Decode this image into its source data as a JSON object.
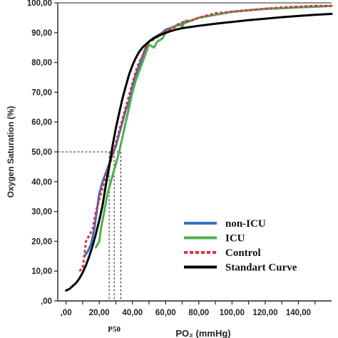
{
  "chart_data": {
    "type": "line",
    "title": "",
    "xlabel": "PO₂ (mmHg)",
    "ylabel": "Oxygen Saturation (%)",
    "xlim": [
      -5,
      160
    ],
    "ylim": [
      0,
      100
    ],
    "x_ticks": [
      0,
      10,
      20,
      30,
      40,
      50,
      60,
      70,
      80,
      90,
      100,
      110,
      120,
      130,
      140,
      150
    ],
    "x_tick_labels": [
      ",00",
      "",
      "20,00",
      "",
      "40,00",
      "",
      "60,00",
      "",
      "80,00",
      "",
      "100,00",
      "",
      "120,00",
      "",
      "140,00",
      ""
    ],
    "y_ticks": [
      0,
      10,
      20,
      30,
      40,
      50,
      60,
      70,
      80,
      90,
      100
    ],
    "y_tick_labels": [
      ",00",
      "10,00",
      "20,00",
      "30,00",
      "40,00",
      "50,00",
      "60,00",
      "70,00",
      "80,00",
      "90,00",
      "100,00"
    ],
    "grid": false,
    "legend_position": "bottom-right",
    "reference_lines": {
      "label": "P50",
      "y": 50,
      "x": [
        26,
        29,
        33
      ]
    },
    "series": [
      {
        "name": "non-ICU",
        "color": "#3a6fc4",
        "dash": "solid",
        "points": [
          [
            11,
            15
          ],
          [
            13,
            16.5
          ],
          [
            15,
            19
          ],
          [
            16,
            21.5
          ],
          [
            17,
            24
          ],
          [
            18,
            28
          ],
          [
            19,
            32
          ],
          [
            20,
            36
          ],
          [
            22,
            40
          ],
          [
            24,
            43
          ],
          [
            26,
            46
          ],
          [
            28,
            49
          ],
          [
            30,
            52
          ],
          [
            32,
            56
          ],
          [
            34,
            60
          ],
          [
            36,
            64
          ],
          [
            38,
            67
          ],
          [
            40,
            72
          ],
          [
            42,
            76
          ],
          [
            44,
            79
          ],
          [
            46,
            82
          ],
          [
            48,
            85
          ],
          [
            50,
            87
          ],
          [
            52,
            88
          ],
          [
            55,
            89
          ],
          [
            58,
            90
          ],
          [
            60,
            91
          ],
          [
            65,
            92
          ],
          [
            70,
            93
          ],
          [
            75,
            94
          ],
          [
            80,
            95
          ],
          [
            90,
            96
          ],
          [
            100,
            97
          ],
          [
            110,
            97.5
          ],
          [
            120,
            98
          ],
          [
            130,
            98.2
          ],
          [
            140,
            98.5
          ],
          [
            150,
            98.7
          ],
          [
            160,
            99
          ]
        ]
      },
      {
        "name": "ICU",
        "color": "#4caf50",
        "dash": "solid",
        "points": [
          [
            18,
            18
          ],
          [
            20,
            20
          ],
          [
            21,
            24
          ],
          [
            22,
            27
          ],
          [
            23,
            30
          ],
          [
            24,
            33
          ],
          [
            25,
            36
          ],
          [
            27,
            40
          ],
          [
            29,
            44
          ],
          [
            30,
            46
          ],
          [
            32,
            50
          ],
          [
            34,
            55
          ],
          [
            36,
            60
          ],
          [
            38,
            65
          ],
          [
            40,
            70
          ],
          [
            42,
            74
          ],
          [
            44,
            77
          ],
          [
            46,
            80
          ],
          [
            48,
            83
          ],
          [
            50,
            86
          ],
          [
            53,
            85
          ],
          [
            55,
            87
          ],
          [
            58,
            88
          ],
          [
            60,
            90
          ],
          [
            62,
            91
          ],
          [
            65,
            92
          ],
          [
            68,
            93
          ],
          [
            70,
            92
          ],
          [
            72,
            94
          ],
          [
            75,
            94
          ],
          [
            80,
            95
          ],
          [
            90,
            96
          ],
          [
            100,
            97
          ],
          [
            110,
            97.5
          ],
          [
            120,
            98
          ],
          [
            130,
            98.2
          ],
          [
            140,
            98.5
          ],
          [
            150,
            98.7
          ],
          [
            160,
            99
          ]
        ]
      },
      {
        "name": "Control",
        "color": "#e03040",
        "dash": "dashed",
        "points": [
          [
            8,
            10
          ],
          [
            10,
            11
          ],
          [
            11,
            15
          ],
          [
            12,
            20
          ],
          [
            14,
            22
          ],
          [
            16,
            24
          ],
          [
            17,
            27
          ],
          [
            18,
            30
          ],
          [
            20,
            34
          ],
          [
            22,
            38
          ],
          [
            24,
            42
          ],
          [
            26,
            45
          ],
          [
            28,
            49
          ],
          [
            30,
            53
          ],
          [
            32,
            57
          ],
          [
            34,
            61
          ],
          [
            36,
            65
          ],
          [
            38,
            69
          ],
          [
            40,
            73
          ],
          [
            42,
            77
          ],
          [
            44,
            80
          ],
          [
            46,
            82
          ],
          [
            48,
            85
          ],
          [
            50,
            87
          ],
          [
            54,
            88
          ],
          [
            58,
            90
          ],
          [
            62,
            91
          ],
          [
            66,
            92
          ],
          [
            70,
            93.5
          ],
          [
            75,
            94
          ],
          [
            80,
            95
          ],
          [
            90,
            96.5
          ],
          [
            100,
            97
          ],
          [
            110,
            97.5
          ],
          [
            120,
            98
          ],
          [
            130,
            98.5
          ],
          [
            140,
            98.7
          ],
          [
            150,
            99
          ],
          [
            160,
            99
          ]
        ]
      },
      {
        "name": "Standart Curve",
        "color": "#000000",
        "dash": "solid",
        "points": [
          [
            0,
            3.5
          ],
          [
            2,
            4
          ],
          [
            4,
            5
          ],
          [
            6,
            6
          ],
          [
            8,
            7.5
          ],
          [
            10,
            9.5
          ],
          [
            12,
            12
          ],
          [
            14,
            15
          ],
          [
            16,
            18.5
          ],
          [
            18,
            22.5
          ],
          [
            20,
            27
          ],
          [
            22,
            32
          ],
          [
            24,
            39
          ],
          [
            26,
            45
          ],
          [
            28,
            52
          ],
          [
            30,
            58
          ],
          [
            32,
            63
          ],
          [
            34,
            68
          ],
          [
            36,
            72
          ],
          [
            38,
            76
          ],
          [
            40,
            79
          ],
          [
            42,
            81.5
          ],
          [
            44,
            83.5
          ],
          [
            46,
            85
          ],
          [
            48,
            86
          ],
          [
            50,
            87
          ],
          [
            54,
            88.5
          ],
          [
            58,
            89.5
          ],
          [
            62,
            90.3
          ],
          [
            66,
            91
          ],
          [
            70,
            91.5
          ],
          [
            80,
            92.3
          ],
          [
            90,
            93
          ],
          [
            100,
            93.6
          ],
          [
            110,
            94.2
          ],
          [
            120,
            94.7
          ],
          [
            130,
            95.2
          ],
          [
            140,
            95.6
          ],
          [
            150,
            96
          ],
          [
            160,
            96.3
          ]
        ]
      }
    ]
  }
}
